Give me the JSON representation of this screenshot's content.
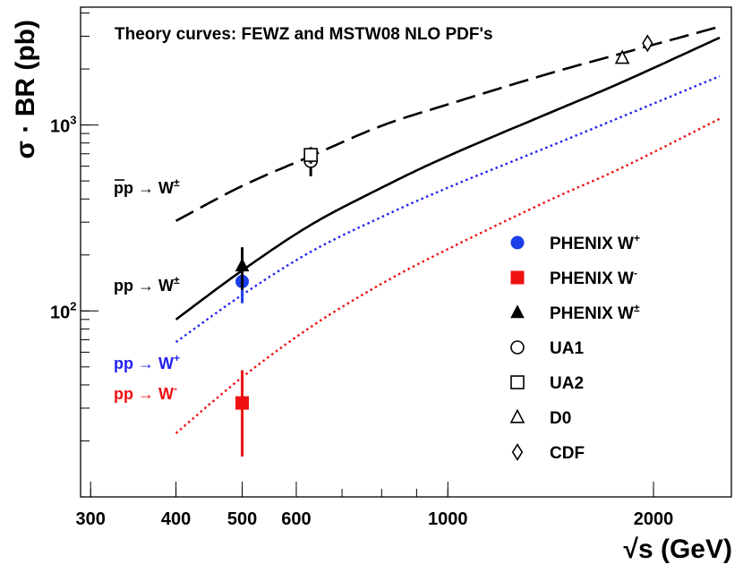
{
  "chart_data": {
    "type": "line",
    "title": "Theory curves: FEWZ and MSTW08 NLO PDF's",
    "xlabel": "√s (GeV)",
    "ylabel": "σ · BR (pb)",
    "xscale": "log",
    "yscale": "log",
    "xlim": [
      290,
      2600
    ],
    "ylim": [
      10,
      4300
    ],
    "x_ticks": [
      {
        "value": 300,
        "label": "300"
      },
      {
        "value": 400,
        "label": "400"
      },
      {
        "value": 500,
        "label": "500"
      },
      {
        "value": 600,
        "label": "600"
      },
      {
        "value": 1000,
        "label": "1000"
      },
      {
        "value": 2000,
        "label": "2000"
      }
    ],
    "y_ticks": [
      {
        "value": 100,
        "base": "10",
        "exp": "2"
      },
      {
        "value": 1000,
        "base": "10",
        "exp": "3"
      }
    ],
    "curves": [
      {
        "name": "ppbar-W-pm",
        "label_main": "pp → W",
        "label_sup": "±",
        "overline": true,
        "style": "dashed",
        "color": "#000000",
        "x": [
          400,
          500,
          630,
          800,
          1000,
          1400,
          1800,
          2500
        ],
        "y": [
          305,
          470,
          680,
          990,
          1290,
          1880,
          2430,
          3380
        ]
      },
      {
        "name": "pp-W-pm",
        "label_main": "pp → W",
        "label_sup": "±",
        "overline": false,
        "style": "solid",
        "color": "#000000",
        "x": [
          400,
          500,
          630,
          800,
          1000,
          1400,
          1800,
          2500
        ],
        "y": [
          90,
          165,
          290,
          460,
          680,
          1150,
          1700,
          2950
        ]
      },
      {
        "name": "pp-W-plus",
        "label_main": "pp → W",
        "label_sup": "+",
        "overline": false,
        "style": "dotted",
        "color": "#2222ee",
        "x": [
          400,
          500,
          630,
          800,
          1000,
          1400,
          1800,
          2500
        ],
        "y": [
          68,
          122,
          208,
          320,
          460,
          760,
          1110,
          1830
        ]
      },
      {
        "name": "pp-W-minus",
        "label_main": "pp → W",
        "label_sup": "-",
        "overline": false,
        "style": "dotted",
        "color": "#ee1111",
        "x": [
          400,
          500,
          630,
          800,
          1000,
          1400,
          1800,
          2500
        ],
        "y": [
          22,
          44,
          82,
          140,
          215,
          390,
          590,
          1080
        ]
      }
    ],
    "points": [
      {
        "series": "PHENIX W+",
        "marker": "circle-filled",
        "color": "#1a3ee8",
        "x": 500,
        "y": 144,
        "yerr_low": 110,
        "yerr_high": 170
      },
      {
        "series": "PHENIX W-",
        "marker": "square-filled",
        "color": "#ee1111",
        "x": 500,
        "y": 32,
        "yerr_low": 16.5,
        "yerr_high": 48
      },
      {
        "series": "PHENIX W±",
        "marker": "triangle-filled",
        "color": "#000000",
        "x": 500,
        "y": 175,
        "yerr_low": 130,
        "yerr_high": 220
      },
      {
        "series": "UA1",
        "marker": "circle-open",
        "color": "#000000",
        "x": 630,
        "y": 640,
        "yerr_low": 530,
        "yerr_high": 750
      },
      {
        "series": "UA2",
        "marker": "square-open",
        "color": "#000000",
        "x": 630,
        "y": 690,
        "yerr_low": 620,
        "yerr_high": 760
      },
      {
        "series": "D0",
        "marker": "triangle-open",
        "color": "#000000",
        "x": 1800,
        "y": 2290,
        "yerr_low": 2230,
        "yerr_high": 2350
      },
      {
        "series": "CDF",
        "marker": "diamond-open",
        "color": "#000000",
        "x": 1960,
        "y": 2750,
        "yerr_low": 2690,
        "yerr_high": 2810
      }
    ],
    "legend": {
      "placement": "right-middle",
      "entries": [
        {
          "marker": "circle-filled",
          "color": "#1a3ee8",
          "text": "PHENIX W",
          "sup": "+"
        },
        {
          "marker": "square-filled",
          "color": "#ee1111",
          "text": "PHENIX W",
          "sup": "-"
        },
        {
          "marker": "triangle-filled",
          "color": "#000000",
          "text": "PHENIX W",
          "sup": "±"
        },
        {
          "marker": "circle-open",
          "color": "#000000",
          "text": "UA1",
          "sup": ""
        },
        {
          "marker": "square-open",
          "color": "#000000",
          "text": "UA2",
          "sup": ""
        },
        {
          "marker": "triangle-open",
          "color": "#000000",
          "text": "D0",
          "sup": ""
        },
        {
          "marker": "diamond-open",
          "color": "#000000",
          "text": "CDF",
          "sup": ""
        }
      ]
    }
  }
}
